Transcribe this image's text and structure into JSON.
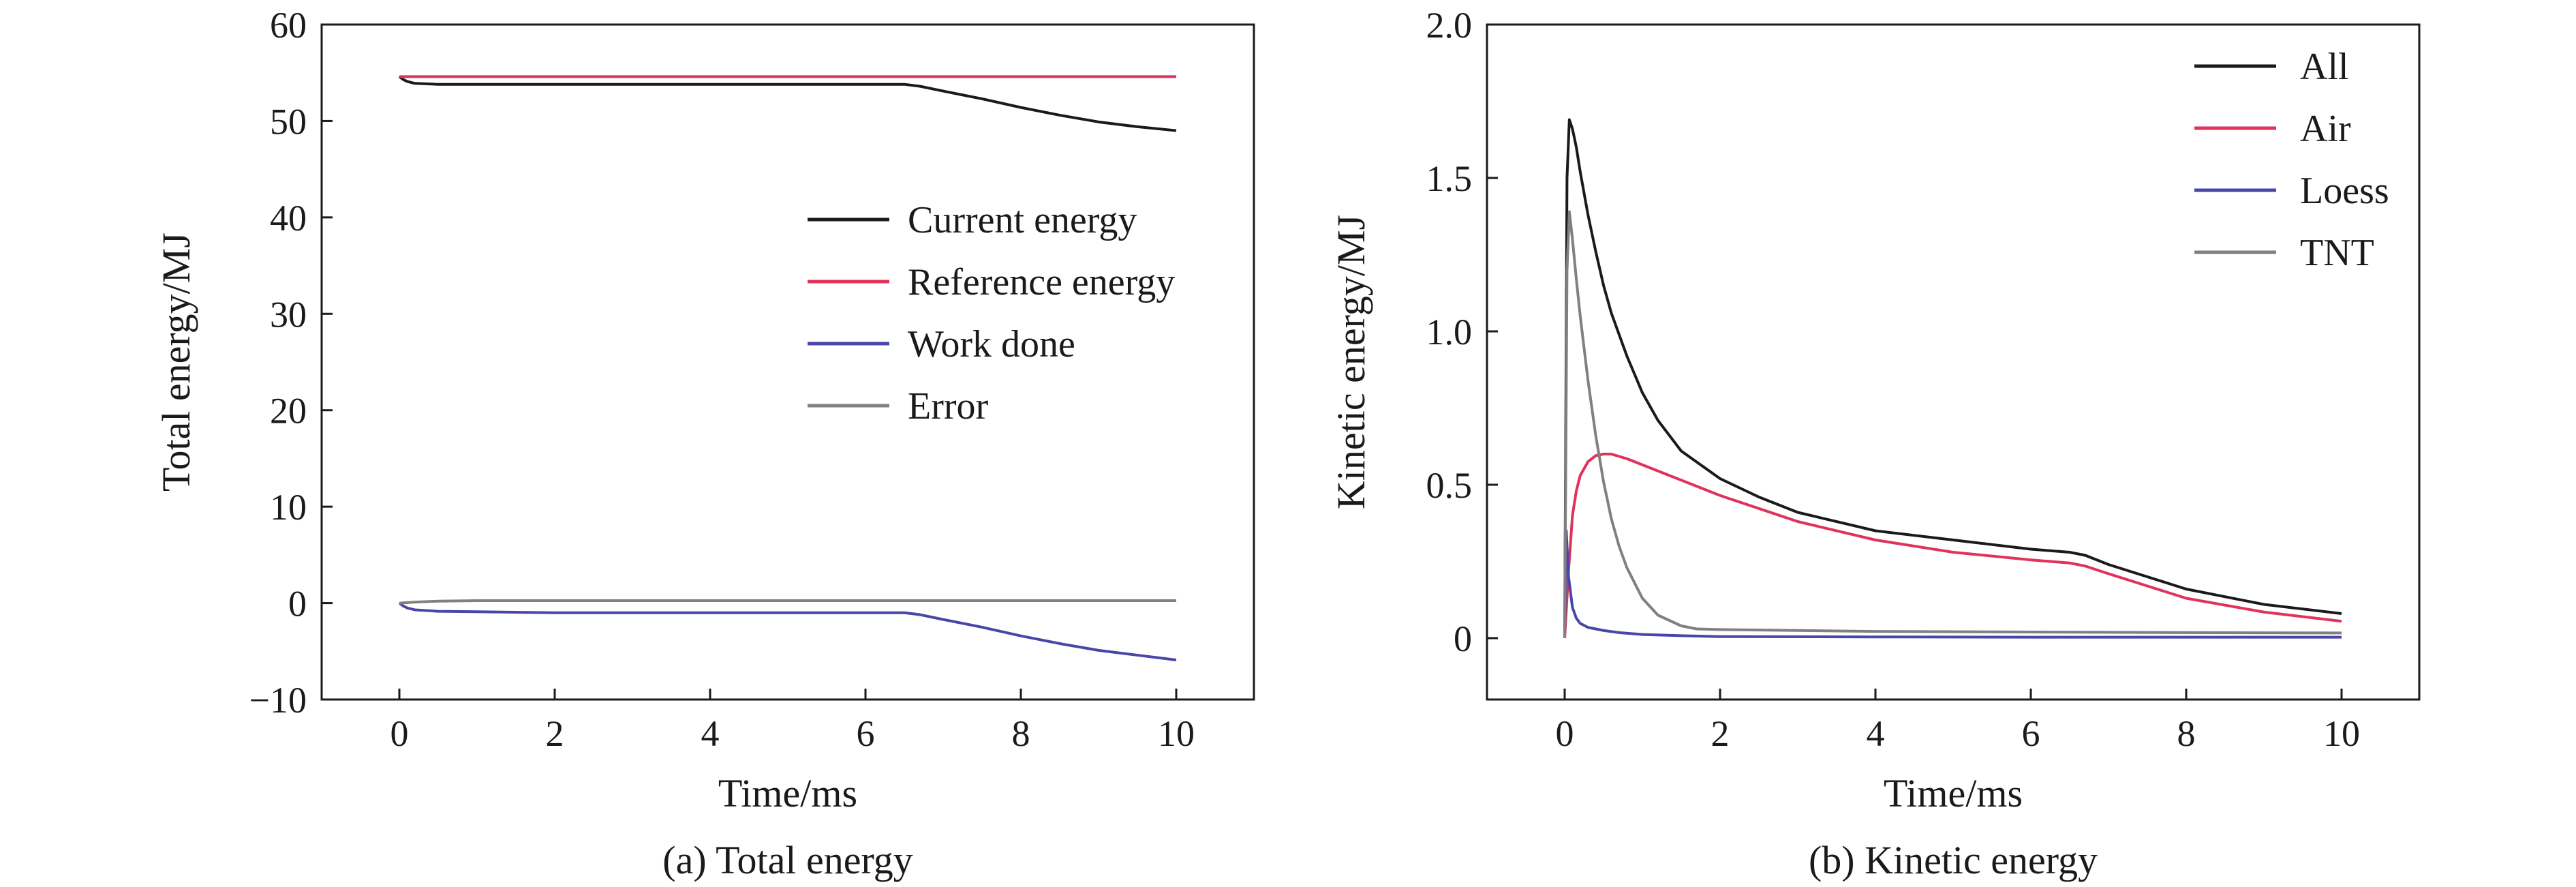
{
  "figure": {
    "colors": {
      "black": "#1a1a1a",
      "red": "#e0325a",
      "blue": "#4a46a8",
      "gray": "#808080"
    }
  },
  "chart_data": [
    {
      "type": "line",
      "caption": "(a) Total energy",
      "title": "",
      "xlabel": "Time/ms",
      "ylabel": "Total energy/MJ",
      "xlim": [
        -1,
        11
      ],
      "ylim": [
        -10,
        60
      ],
      "xticks": [
        0,
        2,
        4,
        6,
        8,
        10
      ],
      "yticks": [
        -10,
        0,
        10,
        20,
        30,
        40,
        50,
        60
      ],
      "ytick_labels": [
        "−10",
        "0",
        "10",
        "20",
        "30",
        "40",
        "50",
        "60"
      ],
      "grid": false,
      "legend_position": "center-right",
      "series": [
        {
          "name": "Current energy",
          "color": "#1a1a1a",
          "x": [
            0,
            0.05,
            0.1,
            0.2,
            0.5,
            1,
            2,
            4,
            6,
            6.5,
            6.7,
            7,
            7.5,
            8,
            8.5,
            9,
            9.5,
            10
          ],
          "y": [
            54.6,
            54.3,
            54.1,
            53.9,
            53.8,
            53.8,
            53.8,
            53.8,
            53.8,
            53.8,
            53.6,
            53.1,
            52.3,
            51.4,
            50.6,
            49.9,
            49.4,
            49.0
          ]
        },
        {
          "name": "Reference energy",
          "color": "#e0325a",
          "x": [
            0,
            10
          ],
          "y": [
            54.6,
            54.6
          ]
        },
        {
          "name": "Work done",
          "color": "#4a46a8",
          "x": [
            0,
            0.05,
            0.1,
            0.2,
            0.5,
            1,
            2,
            4,
            6,
            6.5,
            6.7,
            7,
            7.5,
            8,
            8.5,
            9,
            9.5,
            10
          ],
          "y": [
            0,
            -0.3,
            -0.5,
            -0.7,
            -0.85,
            -0.9,
            -1.0,
            -1.0,
            -1.0,
            -1.0,
            -1.2,
            -1.7,
            -2.5,
            -3.4,
            -4.2,
            -4.9,
            -5.4,
            -5.9
          ]
        },
        {
          "name": "Error",
          "color": "#808080",
          "x": [
            0,
            0.2,
            0.5,
            1,
            2,
            4,
            6,
            8,
            10
          ],
          "y": [
            0,
            0.1,
            0.2,
            0.25,
            0.25,
            0.25,
            0.25,
            0.25,
            0.25
          ]
        }
      ]
    },
    {
      "type": "line",
      "caption": "(b) Kinetic energy",
      "title": "",
      "xlabel": "Time/ms",
      "ylabel": "Kinetic energy/MJ",
      "xlim": [
        -1,
        11
      ],
      "ylim": [
        -0.2,
        2.0
      ],
      "xticks": [
        0,
        2,
        4,
        6,
        8,
        10
      ],
      "yticks": [
        0,
        0.5,
        1.0,
        1.5,
        2.0
      ],
      "ytick_labels": [
        "0",
        "0.5",
        "1.0",
        "1.5",
        "2.0"
      ],
      "grid": false,
      "legend_position": "top-right",
      "series": [
        {
          "name": "All",
          "color": "#1a1a1a",
          "x": [
            0,
            0.03,
            0.06,
            0.1,
            0.15,
            0.2,
            0.3,
            0.4,
            0.5,
            0.6,
            0.8,
            1.0,
            1.2,
            1.5,
            2,
            2.5,
            3,
            4,
            5,
            6,
            6.5,
            6.7,
            7,
            7.5,
            8,
            9,
            10
          ],
          "y": [
            0,
            1.5,
            1.69,
            1.66,
            1.6,
            1.52,
            1.38,
            1.26,
            1.15,
            1.06,
            0.92,
            0.8,
            0.71,
            0.61,
            0.52,
            0.46,
            0.41,
            0.35,
            0.32,
            0.29,
            0.28,
            0.27,
            0.24,
            0.2,
            0.16,
            0.11,
            0.08
          ]
        },
        {
          "name": "Air",
          "color": "#e0325a",
          "x": [
            0,
            0.05,
            0.1,
            0.15,
            0.2,
            0.3,
            0.4,
            0.5,
            0.6,
            0.8,
            1.0,
            1.5,
            2,
            3,
            4,
            5,
            6,
            6.5,
            6.7,
            7,
            7.5,
            8,
            9,
            10
          ],
          "y": [
            0,
            0.22,
            0.4,
            0.48,
            0.53,
            0.575,
            0.595,
            0.6,
            0.6,
            0.585,
            0.565,
            0.515,
            0.465,
            0.38,
            0.32,
            0.28,
            0.255,
            0.245,
            0.235,
            0.21,
            0.17,
            0.13,
            0.085,
            0.055
          ]
        },
        {
          "name": "Loess",
          "color": "#4a46a8",
          "x": [
            0,
            0.02,
            0.05,
            0.1,
            0.15,
            0.2,
            0.3,
            0.5,
            0.7,
            1.0,
            1.5,
            2,
            4,
            6,
            8,
            10
          ],
          "y": [
            0,
            0.35,
            0.2,
            0.1,
            0.065,
            0.048,
            0.035,
            0.025,
            0.018,
            0.012,
            0.008,
            0.005,
            0.004,
            0.003,
            0.003,
            0.003
          ]
        },
        {
          "name": "TNT",
          "color": "#808080",
          "x": [
            0,
            0.03,
            0.06,
            0.1,
            0.15,
            0.2,
            0.3,
            0.4,
            0.5,
            0.6,
            0.7,
            0.8,
            1.0,
            1.2,
            1.5,
            1.7,
            2,
            3,
            4,
            6,
            8,
            10
          ],
          "y": [
            0,
            1.2,
            1.39,
            1.3,
            1.17,
            1.05,
            0.84,
            0.66,
            0.51,
            0.39,
            0.3,
            0.23,
            0.13,
            0.075,
            0.04,
            0.03,
            0.028,
            0.025,
            0.022,
            0.02,
            0.018,
            0.017
          ]
        }
      ]
    }
  ]
}
